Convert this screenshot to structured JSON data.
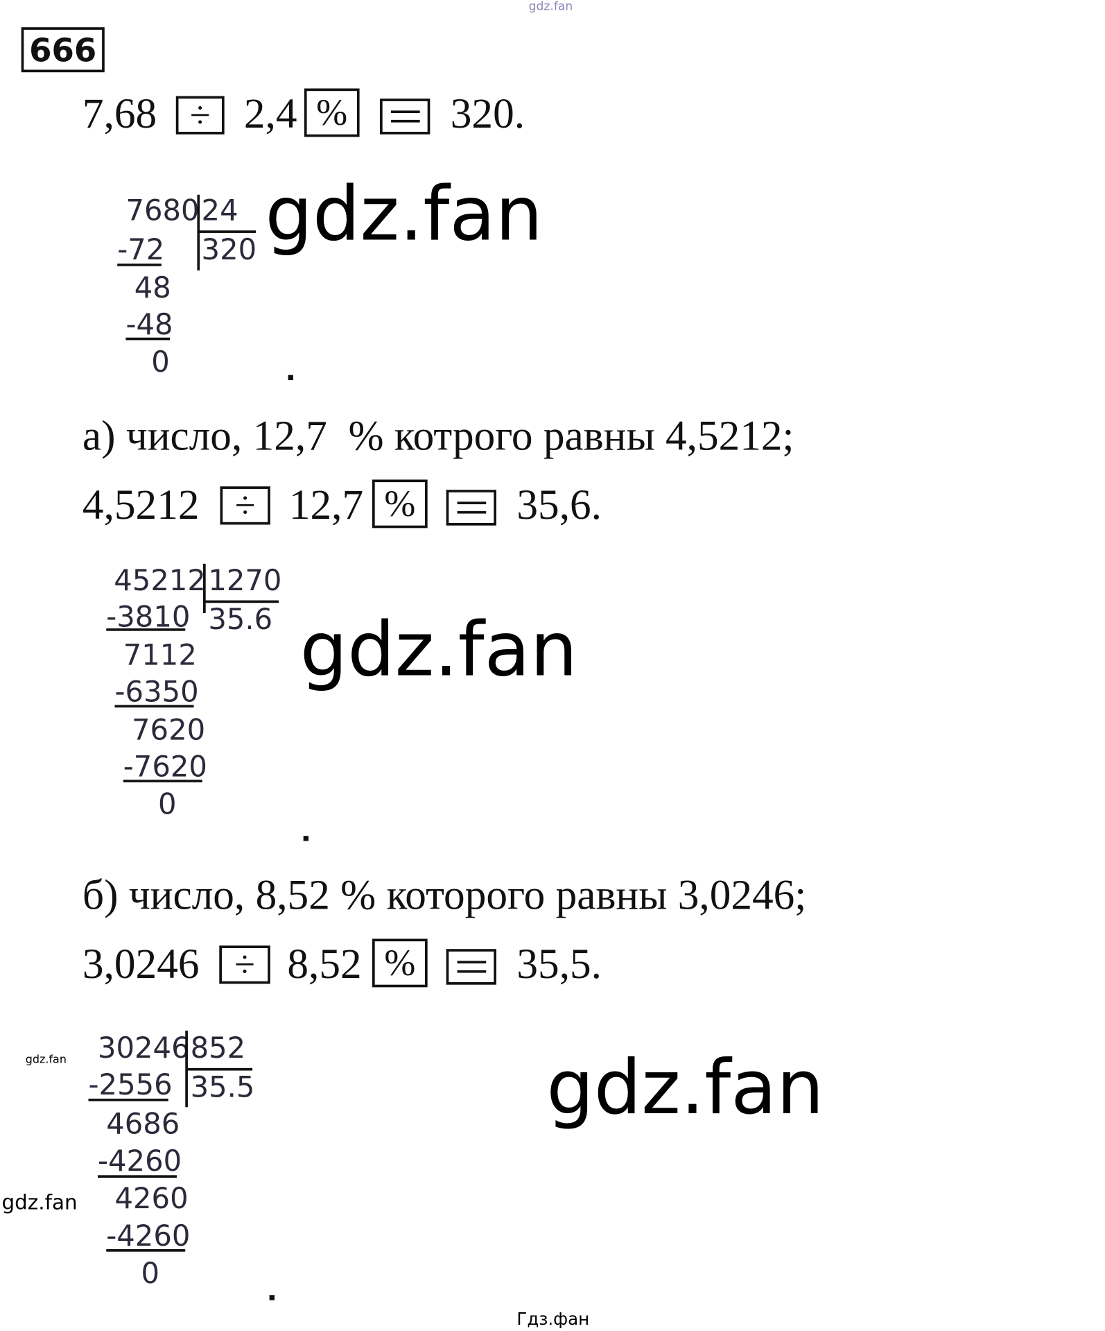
{
  "watermarks": {
    "top": "gdz.fan",
    "big": "gdz.fan",
    "small": "gdz.fan",
    "bottom": "Гдз.фан"
  },
  "problem_number": "666",
  "keys": {
    "divide": "÷",
    "percent": "%"
  },
  "example": {
    "line": {
      "a": "7,68",
      "b": "2,4",
      "result": "320."
    },
    "division": {
      "dividend": "7680",
      "divisor": "24",
      "quotient": "320",
      "steps": [
        "-72",
        "48",
        "-48",
        "0"
      ]
    }
  },
  "part_a": {
    "text": "а) число, 12,7  % котрого равны 4,5212;",
    "line": {
      "a": "4,5212",
      "b": "12,7",
      "result": "35,6."
    },
    "division": {
      "dividend": "45212",
      "divisor": "1270",
      "quotient": "35.6",
      "steps": [
        "-3810",
        "7112",
        "-6350",
        "7620",
        "-7620",
        "0"
      ]
    }
  },
  "part_b": {
    "text": "б) число, 8,52 % которого равны 3,0246;",
    "line": {
      "a": "3,0246",
      "b": "8,52",
      "result": "35,5."
    },
    "division": {
      "dividend": "30246",
      "divisor": "852",
      "quotient": "35.5",
      "steps": [
        "-2556",
        "4686",
        "-4260",
        "4260",
        "-4260",
        "0"
      ]
    }
  }
}
